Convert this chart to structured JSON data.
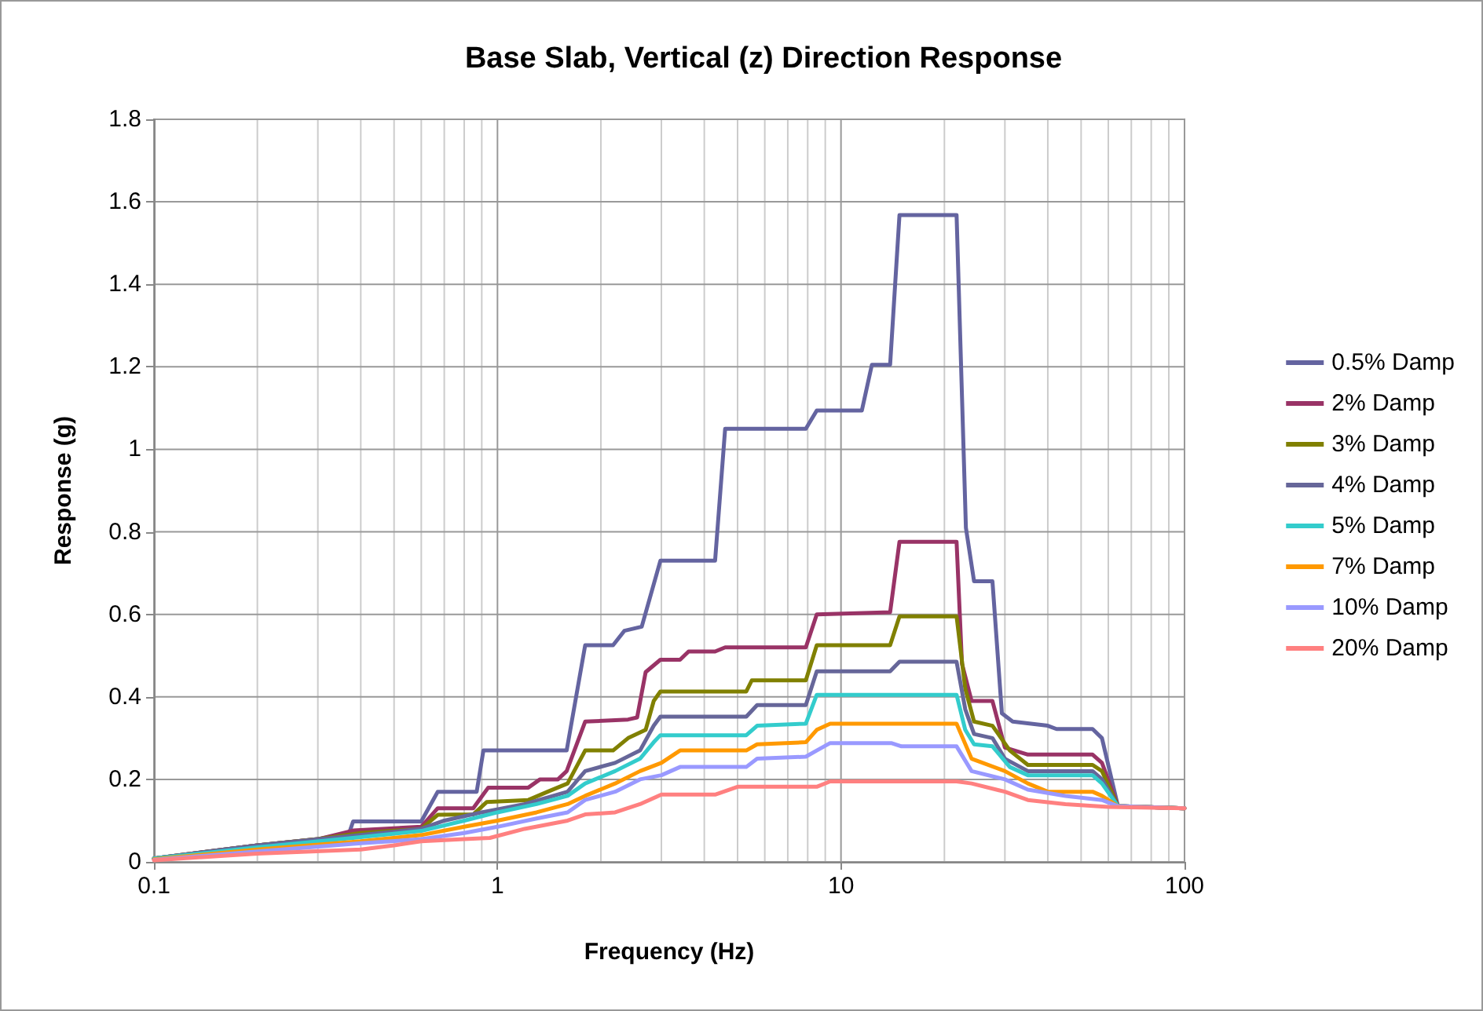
{
  "chart_data": {
    "type": "line",
    "title": "Base Slab, Vertical (z) Direction Response",
    "xlabel": "Frequency (Hz)",
    "ylabel": "Response (g)",
    "log": "x",
    "grid": true,
    "legend": "right",
    "marker": "none",
    "line_style": "solid",
    "xlim": [
      0.1,
      100
    ],
    "ylim": [
      0,
      1.8
    ],
    "xticks": [
      0.1,
      {
        "value": 0.2,
        "label": null
      },
      {
        "value": 0.3,
        "label": null
      },
      {
        "value": 0.4,
        "label": null
      },
      {
        "value": 0.5,
        "label": null
      },
      {
        "value": 0.6,
        "label": null
      },
      {
        "value": 0.7,
        "label": null
      },
      {
        "value": 0.8,
        "label": null
      },
      {
        "value": 0.9,
        "label": null
      },
      1,
      {
        "value": 2,
        "label": null
      },
      {
        "value": 3,
        "label": null
      },
      {
        "value": 4,
        "label": null
      },
      {
        "value": 5,
        "label": null
      },
      {
        "value": 6,
        "label": null
      },
      {
        "value": 7,
        "label": null
      },
      {
        "value": 8,
        "label": null
      },
      {
        "value": 9,
        "label": null
      },
      10,
      {
        "value": 20,
        "label": null
      },
      {
        "value": 30,
        "label": null
      },
      {
        "value": 40,
        "label": null
      },
      {
        "value": 50,
        "label": null
      },
      {
        "value": 60,
        "label": null
      },
      {
        "value": 70,
        "label": null
      },
      {
        "value": 80,
        "label": null
      },
      {
        "value": 90,
        "label": null
      },
      100
    ],
    "yticks": [
      0,
      0.2,
      0.4,
      0.6,
      0.8,
      1,
      1.2,
      1.4,
      1.6,
      1.8
    ],
    "series": [
      {
        "name": "0.5% Damp",
        "color": "#6464a0",
        "x": [
          0.1,
          0.2,
          0.3,
          0.37,
          0.38,
          0.6,
          0.67,
          0.87,
          0.91,
          1.59,
          1.8,
          2.17,
          2.34,
          2.63,
          2.98,
          4.3,
          4.6,
          7.9,
          8.5,
          11.5,
          12.3,
          13.9,
          14.8,
          21.7,
          23.1,
          24.4,
          27.6,
          29.4,
          31.6,
          40,
          42.4,
          54,
          57.5,
          64,
          100
        ],
        "values": [
          0.008,
          0.04,
          0.055,
          0.07,
          0.098,
          0.098,
          0.17,
          0.17,
          0.27,
          0.27,
          0.525,
          0.525,
          0.56,
          0.57,
          0.73,
          0.73,
          1.05,
          1.05,
          1.094,
          1.094,
          1.205,
          1.205,
          1.568,
          1.568,
          0.81,
          0.68,
          0.68,
          0.36,
          0.34,
          0.33,
          0.322,
          0.322,
          0.3,
          0.135,
          0.13
        ]
      },
      {
        "name": "2% Damp",
        "color": "#993366",
        "x": [
          0.1,
          0.2,
          0.3,
          0.38,
          0.6,
          0.67,
          0.85,
          0.94,
          1.23,
          1.33,
          1.5,
          1.59,
          1.8,
          2.4,
          2.55,
          2.7,
          2.98,
          3.4,
          3.6,
          4.3,
          4.6,
          7.9,
          8.5,
          13.9,
          14.8,
          21.7,
          22.5,
          24,
          27.6,
          30,
          35,
          54,
          57.5,
          64,
          100
        ],
        "values": [
          0.008,
          0.04,
          0.055,
          0.076,
          0.085,
          0.13,
          0.13,
          0.18,
          0.18,
          0.2,
          0.2,
          0.22,
          0.34,
          0.345,
          0.35,
          0.46,
          0.49,
          0.49,
          0.51,
          0.51,
          0.52,
          0.52,
          0.6,
          0.605,
          0.776,
          0.776,
          0.48,
          0.39,
          0.39,
          0.277,
          0.26,
          0.26,
          0.24,
          0.135,
          0.13
        ]
      },
      {
        "name": "3% Damp",
        "color": "#808000",
        "x": [
          0.1,
          0.2,
          0.3,
          0.4,
          0.6,
          0.67,
          0.85,
          0.93,
          1.23,
          1.4,
          1.6,
          1.8,
          2.17,
          2.4,
          2.7,
          2.85,
          2.98,
          5.3,
          5.5,
          7.9,
          8.5,
          13.9,
          14.8,
          21.7,
          23,
          24.4,
          27.6,
          31,
          35,
          54,
          57.5,
          64,
          100
        ],
        "values": [
          0.008,
          0.04,
          0.055,
          0.07,
          0.08,
          0.114,
          0.115,
          0.145,
          0.15,
          0.17,
          0.19,
          0.27,
          0.27,
          0.3,
          0.32,
          0.39,
          0.413,
          0.413,
          0.44,
          0.44,
          0.525,
          0.525,
          0.595,
          0.595,
          0.42,
          0.34,
          0.33,
          0.27,
          0.235,
          0.235,
          0.22,
          0.135,
          0.13
        ]
      },
      {
        "name": "4% Damp",
        "color": "#666699",
        "x": [
          0.1,
          0.2,
          0.4,
          0.6,
          0.7,
          0.9,
          1.2,
          1.6,
          1.8,
          2.2,
          2.6,
          2.85,
          2.98,
          5.3,
          5.7,
          7.9,
          8.5,
          13.9,
          14.8,
          21.7,
          23,
          24.4,
          27.6,
          30,
          35,
          54,
          57.5,
          64,
          100
        ],
        "values": [
          0.008,
          0.04,
          0.065,
          0.08,
          0.1,
          0.12,
          0.14,
          0.17,
          0.22,
          0.24,
          0.27,
          0.33,
          0.352,
          0.352,
          0.38,
          0.38,
          0.462,
          0.462,
          0.485,
          0.485,
          0.37,
          0.31,
          0.3,
          0.25,
          0.22,
          0.22,
          0.2,
          0.135,
          0.13
        ]
      },
      {
        "name": "5% Damp",
        "color": "#33cccc",
        "x": [
          0.1,
          0.2,
          0.4,
          0.6,
          0.8,
          1,
          1.3,
          1.6,
          1.8,
          2.2,
          2.6,
          2.85,
          2.98,
          5.3,
          5.7,
          7.9,
          8.5,
          21.7,
          23,
          24.4,
          27.6,
          31,
          35,
          54,
          57.5,
          64,
          100
        ],
        "values": [
          0.008,
          0.035,
          0.06,
          0.075,
          0.1,
          0.12,
          0.14,
          0.16,
          0.19,
          0.22,
          0.25,
          0.29,
          0.307,
          0.307,
          0.33,
          0.335,
          0.405,
          0.405,
          0.32,
          0.285,
          0.28,
          0.23,
          0.21,
          0.21,
          0.19,
          0.135,
          0.13
        ]
      },
      {
        "name": "7% Damp",
        "color": "#ff9900",
        "x": [
          0.1,
          0.2,
          0.4,
          0.6,
          0.8,
          1,
          1.3,
          1.6,
          1.8,
          2.2,
          2.6,
          3,
          3.4,
          5.3,
          5.7,
          7.9,
          8.5,
          9.3,
          21.7,
          24,
          30,
          35,
          40,
          54,
          57.5,
          64,
          100
        ],
        "values": [
          0.006,
          0.03,
          0.05,
          0.065,
          0.085,
          0.1,
          0.12,
          0.14,
          0.16,
          0.19,
          0.22,
          0.24,
          0.27,
          0.27,
          0.285,
          0.29,
          0.32,
          0.335,
          0.335,
          0.25,
          0.22,
          0.19,
          0.17,
          0.17,
          0.16,
          0.135,
          0.13
        ]
      },
      {
        "name": "10% Damp",
        "color": "#9999ff",
        "x": [
          0.1,
          0.2,
          0.4,
          0.6,
          0.8,
          1,
          1.3,
          1.6,
          1.8,
          2.2,
          2.6,
          3,
          3.4,
          5.3,
          5.7,
          7.9,
          8.5,
          9.3,
          14,
          15,
          21.7,
          24,
          30,
          35,
          45,
          57.5,
          64,
          100
        ],
        "values": [
          0.005,
          0.025,
          0.045,
          0.055,
          0.07,
          0.085,
          0.105,
          0.12,
          0.15,
          0.17,
          0.2,
          0.21,
          0.23,
          0.23,
          0.25,
          0.255,
          0.27,
          0.288,
          0.288,
          0.28,
          0.28,
          0.22,
          0.2,
          0.175,
          0.16,
          0.15,
          0.135,
          0.13
        ]
      },
      {
        "name": "20% Damp",
        "color": "#ff8080",
        "x": [
          0.1,
          0.2,
          0.4,
          0.5,
          0.6,
          0.8,
          0.95,
          1.2,
          1.6,
          1.8,
          2.2,
          2.6,
          3,
          4.3,
          5,
          8.5,
          9.3,
          21.7,
          24,
          30,
          35,
          45,
          60,
          100
        ],
        "values": [
          0.004,
          0.02,
          0.03,
          0.04,
          0.05,
          0.055,
          0.058,
          0.08,
          0.1,
          0.115,
          0.12,
          0.14,
          0.163,
          0.163,
          0.182,
          0.182,
          0.195,
          0.195,
          0.19,
          0.17,
          0.15,
          0.14,
          0.133,
          0.13
        ]
      }
    ]
  }
}
